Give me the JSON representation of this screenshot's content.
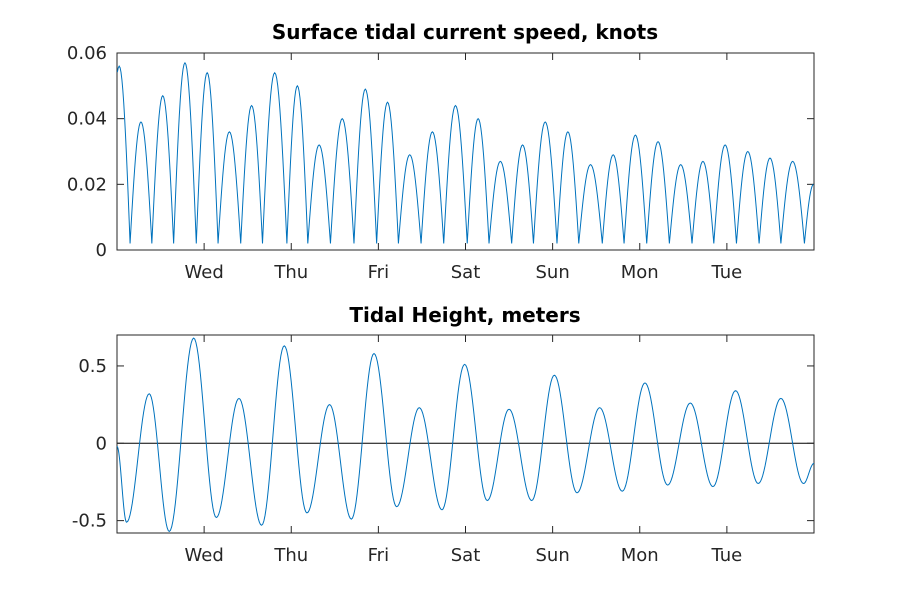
{
  "chart_data": [
    {
      "type": "line",
      "title": "Surface tidal current speed, knots",
      "xlabel": "",
      "ylabel": "",
      "ylim": [
        0,
        0.06
      ],
      "yticks": [
        0,
        0.02,
        0.04,
        0.06
      ],
      "ytick_labels": [
        "0",
        "0.02",
        "0.04",
        "0.06"
      ],
      "xlim_days": [
        0,
        8
      ],
      "xticks_days": [
        1,
        2,
        3,
        4,
        5,
        6,
        7
      ],
      "xtick_labels": [
        "Wed",
        "Thu",
        "Fri",
        "Sat",
        "Sun",
        "Mon",
        "Tue"
      ],
      "grid": false,
      "line_color": "#0072BD",
      "series": [
        {
          "name": "",
          "peaks": [
            [
              0.01,
              0.056
            ],
            [
              0.26,
              0.039
            ],
            [
              0.51,
              0.047
            ],
            [
              0.77,
              0.057
            ],
            [
              1.03,
              0.054
            ],
            [
              1.29,
              0.036
            ],
            [
              1.54,
              0.044
            ],
            [
              1.8,
              0.054
            ],
            [
              2.07,
              0.05
            ],
            [
              2.32,
              0.032
            ],
            [
              2.58,
              0.04
            ],
            [
              2.84,
              0.049
            ],
            [
              3.1,
              0.045
            ],
            [
              3.36,
              0.029
            ],
            [
              3.62,
              0.036
            ],
            [
              3.88,
              0.044
            ],
            [
              4.13,
              0.04
            ],
            [
              4.39,
              0.027
            ],
            [
              4.64,
              0.032
            ],
            [
              4.92,
              0.039
            ],
            [
              5.17,
              0.036
            ],
            [
              5.44,
              0.026
            ],
            [
              5.69,
              0.029
            ],
            [
              5.95,
              0.035
            ],
            [
              6.21,
              0.033
            ],
            [
              6.47,
              0.026
            ],
            [
              6.72,
              0.027
            ],
            [
              6.98,
              0.032
            ],
            [
              7.24,
              0.03
            ],
            [
              7.49,
              0.028
            ],
            [
              7.75,
              0.027
            ],
            [
              8.0,
              0.02
            ]
          ],
          "troughs": [
            [
              0.15,
              0.002
            ],
            [
              0.4,
              0.003
            ],
            [
              0.65,
              0.004
            ],
            [
              0.91,
              0.003
            ],
            [
              1.16,
              0.002
            ],
            [
              1.42,
              0.002
            ],
            [
              1.67,
              0.002
            ],
            [
              1.95,
              0.002
            ],
            [
              2.19,
              0.002
            ],
            [
              2.45,
              0.002
            ],
            [
              2.72,
              0.002
            ],
            [
              2.98,
              0.002
            ],
            [
              3.23,
              0.002
            ],
            [
              3.49,
              0.002
            ],
            [
              3.75,
              0.002
            ],
            [
              4.02,
              0.002
            ],
            [
              4.27,
              0.002
            ],
            [
              4.53,
              0.002
            ],
            [
              4.78,
              0.002
            ],
            [
              5.05,
              0.002
            ],
            [
              5.3,
              0.002
            ],
            [
              5.57,
              0.002
            ],
            [
              5.82,
              0.002
            ],
            [
              6.08,
              0.002
            ],
            [
              6.34,
              0.002
            ],
            [
              6.6,
              0.002
            ],
            [
              6.85,
              0.002
            ],
            [
              7.11,
              0.002
            ],
            [
              7.37,
              0.002
            ],
            [
              7.62,
              0.002
            ],
            [
              7.89,
              0.002
            ]
          ]
        }
      ]
    },
    {
      "type": "line",
      "title": "Tidal Height, meters",
      "xlabel": "",
      "ylabel": "",
      "ylim": [
        -0.58,
        0.7
      ],
      "yticks": [
        -0.5,
        0,
        0.5
      ],
      "ytick_labels": [
        "-0.5",
        "0",
        "0.5"
      ],
      "xlim_days": [
        0,
        8
      ],
      "xticks_days": [
        1,
        2,
        3,
        4,
        5,
        6,
        7
      ],
      "xtick_labels": [
        "Wed",
        "Thu",
        "Fri",
        "Sat",
        "Sun",
        "Mon",
        "Tue"
      ],
      "grid": false,
      "zero_line": true,
      "zero_line_color": "#000000",
      "line_color": "#0072BD",
      "series": [
        {
          "name": "",
          "extrema": [
            [
              0.0,
              -0.02
            ],
            [
              0.11,
              -0.51
            ],
            [
              0.37,
              0.32
            ],
            [
              0.6,
              -0.57
            ],
            [
              0.88,
              0.68
            ],
            [
              1.14,
              -0.48
            ],
            [
              1.4,
              0.29
            ],
            [
              1.66,
              -0.53
            ],
            [
              1.92,
              0.63
            ],
            [
              2.18,
              -0.45
            ],
            [
              2.44,
              0.25
            ],
            [
              2.69,
              -0.49
            ],
            [
              2.95,
              0.58
            ],
            [
              3.21,
              -0.41
            ],
            [
              3.47,
              0.23
            ],
            [
              3.73,
              -0.43
            ],
            [
              3.99,
              0.51
            ],
            [
              4.25,
              -0.37
            ],
            [
              4.5,
              0.22
            ],
            [
              4.76,
              -0.37
            ],
            [
              5.02,
              0.44
            ],
            [
              5.28,
              -0.32
            ],
            [
              5.54,
              0.23
            ],
            [
              5.8,
              -0.31
            ],
            [
              6.06,
              0.39
            ],
            [
              6.32,
              -0.27
            ],
            [
              6.58,
              0.26
            ],
            [
              6.84,
              -0.28
            ],
            [
              7.1,
              0.34
            ],
            [
              7.36,
              -0.26
            ],
            [
              7.62,
              0.29
            ],
            [
              7.88,
              -0.26
            ],
            [
              8.0,
              -0.13
            ]
          ]
        }
      ]
    }
  ]
}
